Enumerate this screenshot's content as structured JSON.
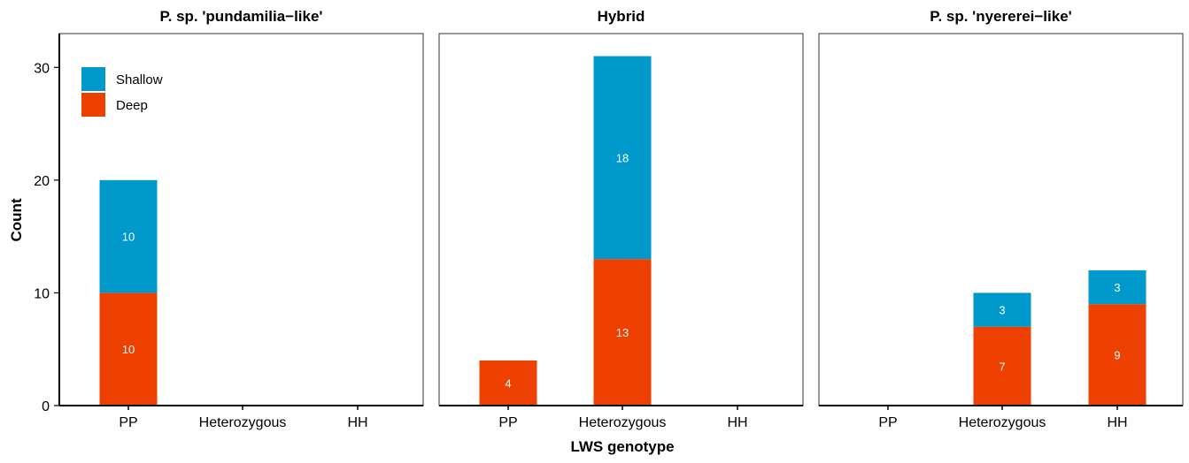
{
  "chart_data": {
    "type": "bar",
    "stacked": true,
    "xlabel": "LWS genotype",
    "ylabel": "Count",
    "ylim": [
      0,
      33
    ],
    "yticks": [
      0,
      10,
      20,
      30
    ],
    "categories": [
      "PP",
      "Heterozygous",
      "HH"
    ],
    "legend": {
      "placement": "top-left",
      "entries": [
        {
          "name": "Shallow",
          "color": "#0099CC"
        },
        {
          "name": "Deep",
          "color": "#EE4000"
        }
      ]
    },
    "panels": [
      {
        "title": "P. sp. 'pundamilia−like'",
        "series": [
          {
            "name": "Deep",
            "values": [
              10,
              0,
              0
            ]
          },
          {
            "name": "Shallow",
            "values": [
              10,
              0,
              0
            ]
          }
        ],
        "labels": {
          "Deep": [
            "10",
            "",
            ""
          ],
          "Shallow": [
            "10",
            "",
            ""
          ]
        }
      },
      {
        "title": "Hybrid",
        "series": [
          {
            "name": "Deep",
            "values": [
              4,
              13,
              0
            ]
          },
          {
            "name": "Shallow",
            "values": [
              0,
              18,
              0
            ]
          }
        ],
        "labels": {
          "Deep": [
            "4",
            "13",
            ""
          ],
          "Shallow": [
            "",
            "18",
            ""
          ]
        }
      },
      {
        "title": "P. sp. 'nyererei−like'",
        "series": [
          {
            "name": "Deep",
            "values": [
              0,
              7,
              9
            ]
          },
          {
            "name": "Shallow",
            "values": [
              0,
              3,
              3
            ]
          }
        ],
        "labels": {
          "Deep": [
            "",
            "7",
            "9"
          ],
          "Shallow": [
            "",
            "3",
            "3"
          ]
        }
      }
    ]
  }
}
